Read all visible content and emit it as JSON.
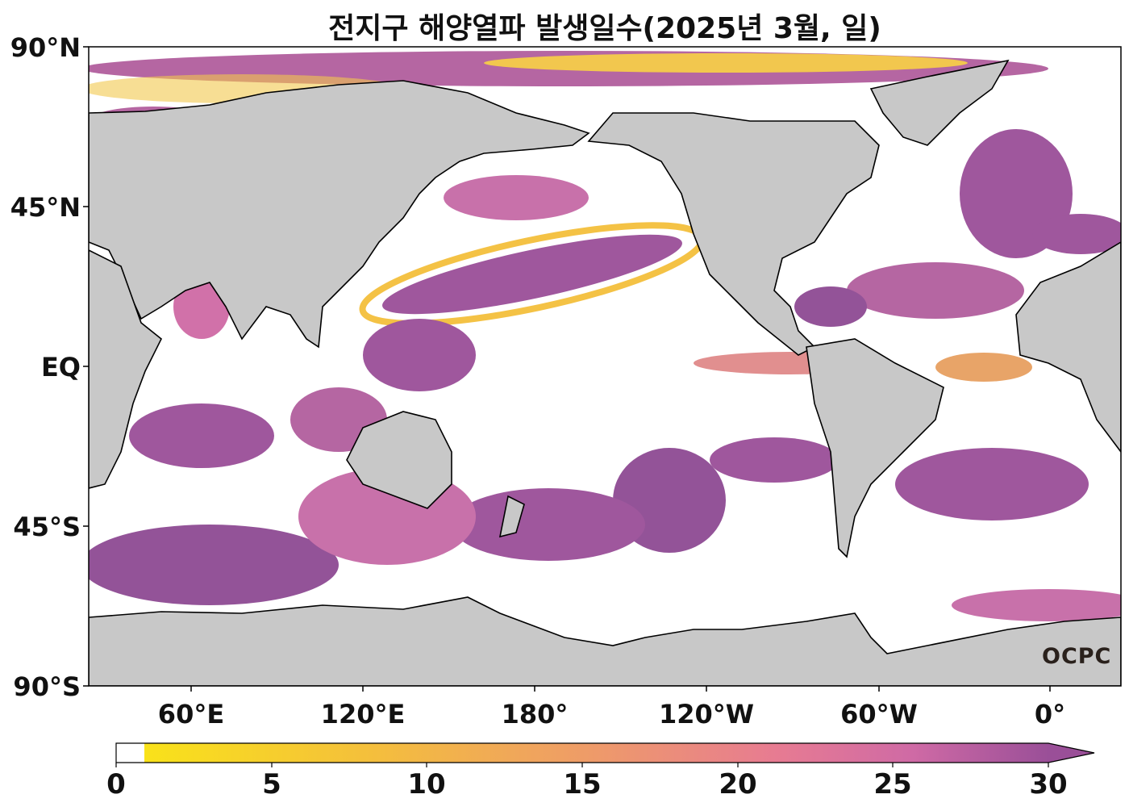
{
  "title": "전지구 해양열파 발생일수(2025년 3월, 일)",
  "map": {
    "lat_labels": [
      "90°N",
      "45°N",
      "EQ",
      "45°S",
      "90°S"
    ],
    "lon_labels": [
      "60°E",
      "120°E",
      "180°",
      "120°W",
      "60°W",
      "0°"
    ],
    "land_color": "#c8c8c8",
    "ocean_color": "#ffffff",
    "coastline_color": "#000000"
  },
  "colorbar": {
    "ticks": [
      "0",
      "5",
      "10",
      "15",
      "20",
      "25",
      "30"
    ],
    "min": 0,
    "max": 30,
    "extend": "max",
    "colors": [
      "#ffffff",
      "#f9e21a",
      "#f4bf3c",
      "#ee9a6a",
      "#e77b92",
      "#cf6aa5",
      "#9a4f98"
    ]
  },
  "logo": "OCPC"
}
